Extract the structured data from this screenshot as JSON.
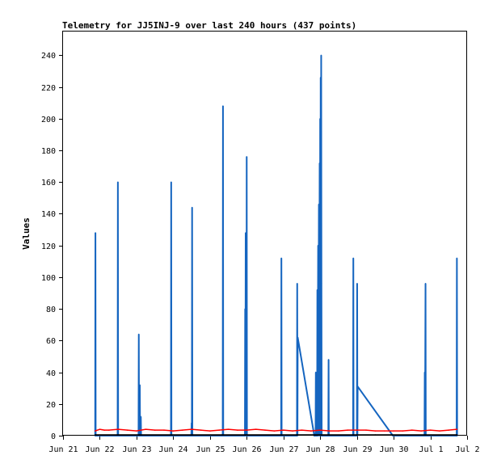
{
  "chart_data": {
    "type": "line",
    "title": "Telemetry for JJ5INJ-9 over last 240 hours (437 points)",
    "xlabel": "",
    "ylabel": "Values",
    "ylim": [
      0,
      255
    ],
    "yticks": [
      0,
      20,
      40,
      60,
      80,
      100,
      120,
      140,
      160,
      180,
      200,
      220,
      240
    ],
    "x_domain": [
      "2026-06-21",
      "2026-07-02"
    ],
    "xticks": [
      {
        "date": "2026-06-21",
        "label": "Jun 21"
      },
      {
        "date": "2026-06-22",
        "label": "Jun 22"
      },
      {
        "date": "2026-06-23",
        "label": "Jun 23"
      },
      {
        "date": "2026-06-24",
        "label": "Jun 24"
      },
      {
        "date": "2026-06-25",
        "label": "Jun 25"
      },
      {
        "date": "2026-06-26",
        "label": "Jun 26"
      },
      {
        "date": "2026-06-27",
        "label": "Jun 27"
      },
      {
        "date": "2026-06-28",
        "label": "Jun 28"
      },
      {
        "date": "2026-06-29",
        "label": "Jun 29"
      },
      {
        "date": "2026-06-30",
        "label": "Jun 30"
      },
      {
        "date": "2026-07-01",
        "label": "Jul 1"
      },
      {
        "date": "2026-07-02",
        "label": "Jul 2"
      }
    ],
    "grid": false,
    "legend": "none",
    "series": [
      {
        "color": "#1565c0",
        "points": [
          [
            "2026-06-21T21:00",
            0
          ],
          [
            "2026-06-21T21:10",
            128
          ],
          [
            "2026-06-21T21:20",
            0
          ],
          [
            "2026-06-22T11:40",
            0
          ],
          [
            "2026-06-22T11:50",
            160
          ],
          [
            "2026-06-22T12:00",
            0
          ],
          [
            "2026-06-23T01:20",
            0
          ],
          [
            "2026-06-23T01:30",
            64
          ],
          [
            "2026-06-23T01:40",
            0
          ],
          [
            "2026-06-23T02:00",
            0
          ],
          [
            "2026-06-23T02:10",
            32
          ],
          [
            "2026-06-23T02:20",
            0
          ],
          [
            "2026-06-23T02:40",
            0
          ],
          [
            "2026-06-23T02:50",
            12
          ],
          [
            "2026-06-23T03:00",
            0
          ],
          [
            "2026-06-23T22:30",
            0
          ],
          [
            "2026-06-23T22:40",
            160
          ],
          [
            "2026-06-23T22:50",
            0
          ],
          [
            "2026-06-24T11:50",
            0
          ],
          [
            "2026-06-24T12:00",
            8
          ],
          [
            "2026-06-24T12:10",
            0
          ],
          [
            "2026-06-24T12:20",
            144
          ],
          [
            "2026-06-24T12:30",
            0
          ],
          [
            "2026-06-25T08:20",
            0
          ],
          [
            "2026-06-25T08:30",
            208
          ],
          [
            "2026-06-25T08:40",
            0
          ],
          [
            "2026-06-25T22:50",
            0
          ],
          [
            "2026-06-25T23:00",
            80
          ],
          [
            "2026-06-25T23:10",
            0
          ],
          [
            "2026-06-25T23:20",
            128
          ],
          [
            "2026-06-25T23:30",
            0
          ],
          [
            "2026-06-25T23:40",
            108
          ],
          [
            "2026-06-25T23:50",
            0
          ],
          [
            "2026-06-26T00:00",
            176
          ],
          [
            "2026-06-26T00:10",
            0
          ],
          [
            "2026-06-26T22:30",
            0
          ],
          [
            "2026-06-26T22:40",
            112
          ],
          [
            "2026-06-26T22:50",
            0
          ],
          [
            "2026-06-27T08:50",
            0
          ],
          [
            "2026-06-27T09:00",
            96
          ],
          [
            "2026-06-27T09:10",
            0
          ],
          [
            "2026-06-27T09:20",
            62
          ],
          [
            "2026-06-27T20:10",
            0
          ],
          [
            "2026-06-27T21:00",
            0
          ],
          [
            "2026-06-27T21:10",
            40
          ],
          [
            "2026-06-27T21:20",
            0
          ],
          [
            "2026-06-27T22:00",
            0
          ],
          [
            "2026-06-27T22:10",
            92
          ],
          [
            "2026-06-27T22:20",
            0
          ],
          [
            "2026-06-27T22:40",
            120
          ],
          [
            "2026-06-27T22:50",
            0
          ],
          [
            "2026-06-27T23:10",
            146
          ],
          [
            "2026-06-27T23:20",
            0
          ],
          [
            "2026-06-27T23:40",
            172
          ],
          [
            "2026-06-27T23:50",
            0
          ],
          [
            "2026-06-28T00:00",
            200
          ],
          [
            "2026-06-28T00:10",
            0
          ],
          [
            "2026-06-28T00:20",
            226
          ],
          [
            "2026-06-28T00:30",
            0
          ],
          [
            "2026-06-28T00:40",
            240
          ],
          [
            "2026-06-28T00:50",
            96
          ],
          [
            "2026-06-28T01:00",
            0
          ],
          [
            "2026-06-28T05:20",
            0
          ],
          [
            "2026-06-28T05:30",
            48
          ],
          [
            "2026-06-28T05:40",
            0
          ],
          [
            "2026-06-28T21:30",
            0
          ],
          [
            "2026-06-28T21:40",
            112
          ],
          [
            "2026-06-28T21:50",
            0
          ],
          [
            "2026-06-29T00:00",
            0
          ],
          [
            "2026-06-29T00:10",
            96
          ],
          [
            "2026-06-29T00:20",
            0
          ],
          [
            "2026-06-29T00:30",
            31
          ],
          [
            "2026-06-29T23:30",
            0
          ],
          [
            "2026-06-30T20:10",
            0
          ],
          [
            "2026-06-30T20:20",
            40
          ],
          [
            "2026-06-30T20:30",
            0
          ],
          [
            "2026-06-30T20:50",
            96
          ],
          [
            "2026-06-30T21:00",
            0
          ],
          [
            "2026-07-01T17:10",
            0
          ],
          [
            "2026-07-01T17:20",
            112
          ],
          [
            "2026-07-01T17:30",
            0
          ]
        ]
      },
      {
        "color": "#ff0000",
        "points": [
          [
            "2026-06-21T21:00",
            3.0
          ],
          [
            "2026-06-22T00:00",
            4.0
          ],
          [
            "2026-06-22T03:00",
            3.5
          ],
          [
            "2026-06-22T06:00",
            3.5
          ],
          [
            "2026-06-22T12:00",
            4.0
          ],
          [
            "2026-06-22T18:00",
            3.5
          ],
          [
            "2026-06-23T00:00",
            3.0
          ],
          [
            "2026-06-23T06:00",
            4.0
          ],
          [
            "2026-06-23T12:00",
            3.5
          ],
          [
            "2026-06-23T18:00",
            3.5
          ],
          [
            "2026-06-24T00:00",
            3.0
          ],
          [
            "2026-06-24T06:00",
            3.5
          ],
          [
            "2026-06-24T12:00",
            4.0
          ],
          [
            "2026-06-24T18:00",
            3.5
          ],
          [
            "2026-06-25T00:00",
            3.0
          ],
          [
            "2026-06-25T06:00",
            3.5
          ],
          [
            "2026-06-25T12:00",
            4.0
          ],
          [
            "2026-06-25T18:00",
            3.5
          ],
          [
            "2026-06-26T00:00",
            3.5
          ],
          [
            "2026-06-26T06:00",
            4.0
          ],
          [
            "2026-06-26T12:00",
            3.5
          ],
          [
            "2026-06-26T18:00",
            3.0
          ],
          [
            "2026-06-27T00:00",
            3.5
          ],
          [
            "2026-06-27T06:00",
            3.0
          ],
          [
            "2026-06-27T12:00",
            3.5
          ],
          [
            "2026-06-27T18:00",
            3.0
          ],
          [
            "2026-06-28T00:00",
            3.5
          ],
          [
            "2026-06-28T06:00",
            3.0
          ],
          [
            "2026-06-28T12:00",
            3.0
          ],
          [
            "2026-06-28T18:00",
            3.5
          ],
          [
            "2026-06-29T00:00",
            3.5
          ],
          [
            "2026-06-29T06:00",
            3.5
          ],
          [
            "2026-06-29T12:00",
            3.0
          ],
          [
            "2026-06-29T18:00",
            3.0
          ],
          [
            "2026-06-30T00:00",
            3.0
          ],
          [
            "2026-06-30T06:00",
            3.0
          ],
          [
            "2026-06-30T12:00",
            3.5
          ],
          [
            "2026-06-30T18:00",
            3.0
          ],
          [
            "2026-07-01T00:00",
            3.5
          ],
          [
            "2026-07-01T06:00",
            3.0
          ],
          [
            "2026-07-01T12:00",
            3.5
          ],
          [
            "2026-07-01T17:20",
            4.0
          ]
        ]
      },
      {
        "color": "#000000",
        "points": [
          [
            "2026-06-21T21:00",
            0.5
          ],
          [
            "2026-06-23T02:00",
            0.5
          ],
          [
            "2026-06-25T08:00",
            0.5
          ],
          [
            "2026-06-27T09:00",
            0.5
          ],
          [
            "2026-06-29T12:00",
            0.5
          ],
          [
            "2026-07-01T17:20",
            0.5
          ]
        ]
      }
    ]
  }
}
